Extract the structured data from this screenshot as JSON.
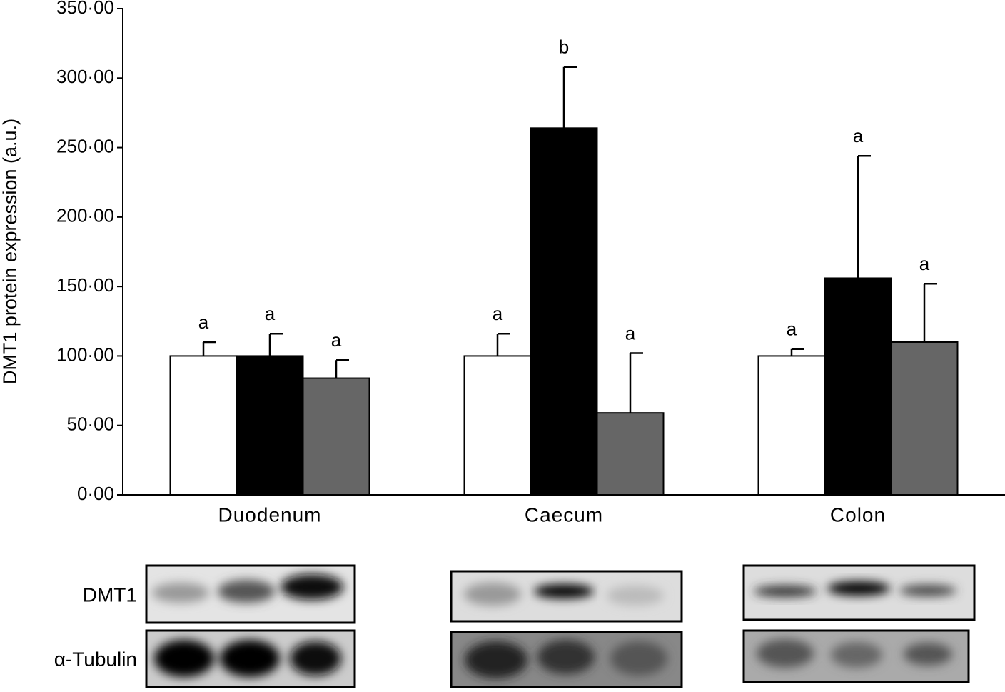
{
  "chart_data": {
    "type": "bar",
    "y_label": "DMT1 protein expression (a.u.)",
    "categories": [
      "Duodenum",
      "Caecum",
      "Colon"
    ],
    "series": [
      {
        "color": "#ffffff",
        "values": [
          100,
          100,
          100
        ],
        "errors": [
          10,
          16,
          5
        ],
        "annotations": [
          "a",
          "a",
          "a"
        ]
      },
      {
        "color": "#000000",
        "values": [
          100,
          264,
          156
        ],
        "errors": [
          16,
          44,
          88
        ],
        "annotations": [
          "a",
          "b",
          "a"
        ]
      },
      {
        "color": "#666666",
        "values": [
          84,
          59,
          110
        ],
        "errors": [
          13,
          43,
          42
        ],
        "annotations": [
          "a",
          "a",
          "a"
        ]
      }
    ],
    "ylim": [
      0,
      350
    ],
    "yticks": [
      {
        "value": 0,
        "label": "0·00"
      },
      {
        "value": 50,
        "label": "50·00"
      },
      {
        "value": 100,
        "label": "100·00"
      },
      {
        "value": 150,
        "label": "150·00"
      },
      {
        "value": 200,
        "label": "200·00"
      },
      {
        "value": 250,
        "label": "250·00"
      },
      {
        "value": 300,
        "label": "300·00"
      },
      {
        "value": 350,
        "label": "350·00"
      }
    ]
  },
  "blots": {
    "rows": [
      "DMT1",
      "α-Tubulin"
    ]
  }
}
